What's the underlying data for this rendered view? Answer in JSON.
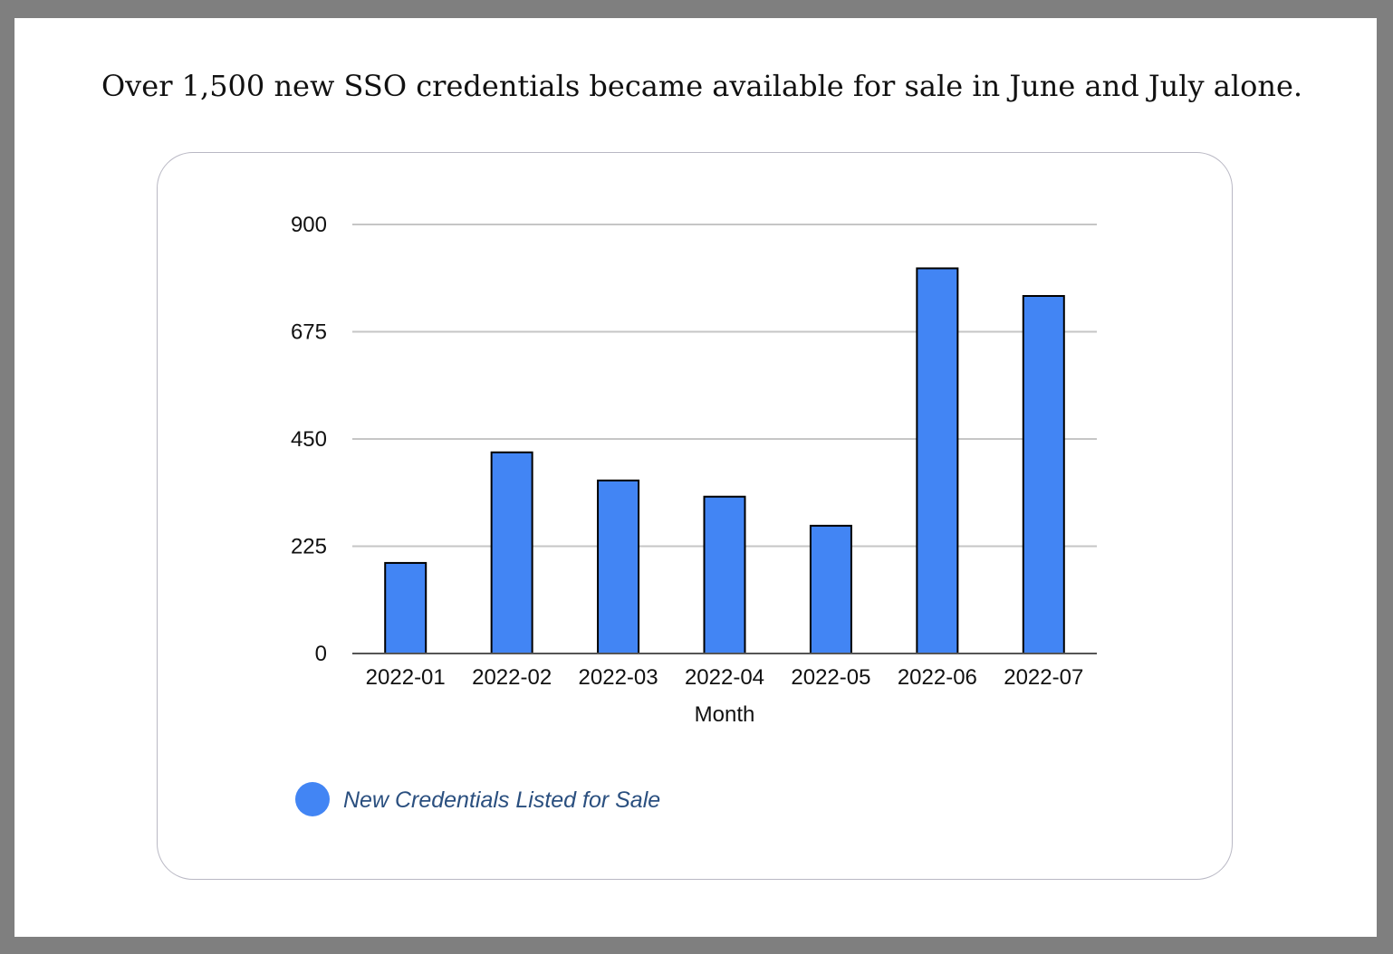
{
  "headline": "Over 1,500 new SSO credentials became available for sale in June and July alone.",
  "colors": {
    "bar": "#4285f4",
    "bar_stroke": "#000000",
    "grid": "#c6c6c6",
    "axis": "#555555",
    "legend_text": "#2a4f7f",
    "frame": "#7f7f7f"
  },
  "chart_data": {
    "type": "bar",
    "title": "",
    "xlabel": "Month",
    "ylabel": "",
    "categories": [
      "2022-01",
      "2022-02",
      "2022-03",
      "2022-04",
      "2022-05",
      "2022-06",
      "2022-07"
    ],
    "series": [
      {
        "name": "New Credentials Listed for Sale",
        "values": [
          190,
          422,
          363,
          329,
          268,
          808,
          750
        ]
      }
    ],
    "ylim": [
      0,
      900
    ],
    "yticks": [
      "0",
      "225",
      "450",
      "675",
      "900"
    ],
    "ytick_values": [
      0,
      225,
      450,
      675,
      900
    ],
    "grid": true,
    "legend_position": "bottom-left"
  }
}
